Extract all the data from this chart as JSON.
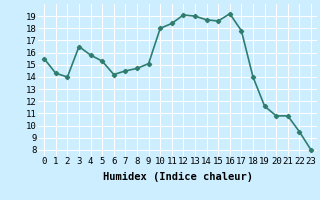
{
  "xlabel": "Humidex (Indice chaleur)",
  "x": [
    0,
    1,
    2,
    3,
    4,
    5,
    6,
    7,
    8,
    9,
    10,
    11,
    12,
    13,
    14,
    15,
    16,
    17,
    18,
    19,
    20,
    21,
    22,
    23
  ],
  "y": [
    15.5,
    14.3,
    14.0,
    16.5,
    15.8,
    15.3,
    14.2,
    14.5,
    14.7,
    15.1,
    18.0,
    18.4,
    19.1,
    19.0,
    18.7,
    18.6,
    19.2,
    17.8,
    14.0,
    11.6,
    10.8,
    10.8,
    9.5,
    8.0
  ],
  "line_color": "#2e7d6e",
  "marker": "D",
  "marker_size": 2.2,
  "line_width": 1.2,
  "bg_color": "#cceeff",
  "grid_color": "#ffffff",
  "ylim_min": 7.5,
  "ylim_max": 20.0,
  "yticks": [
    8,
    9,
    10,
    11,
    12,
    13,
    14,
    15,
    16,
    17,
    18,
    19
  ],
  "xticks": [
    0,
    1,
    2,
    3,
    4,
    5,
    6,
    7,
    8,
    9,
    10,
    11,
    12,
    13,
    14,
    15,
    16,
    17,
    18,
    19,
    20,
    21,
    22,
    23
  ],
  "tick_fontsize": 6.5,
  "label_fontsize": 7.5
}
